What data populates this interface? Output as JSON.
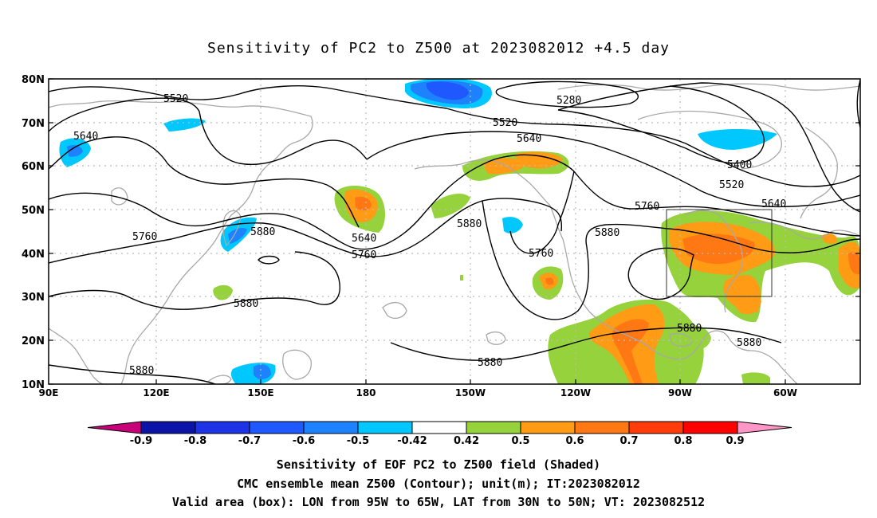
{
  "title": "Sensitivity of PC2 to Z500 at 2023082012 +4.5 day",
  "lat_labels": [
    "80N",
    "70N",
    "60N",
    "50N",
    "40N",
    "30N",
    "20N",
    "10N"
  ],
  "lon_labels": [
    "90E",
    "120E",
    "150E",
    "180",
    "150W",
    "120W",
    "90W",
    "60W"
  ],
  "contour_labels": [
    "5520",
    "5640",
    "5280",
    "5520",
    "5640",
    "5400",
    "5520",
    "5640",
    "5760",
    "5760",
    "5880",
    "5640",
    "5760",
    "5880",
    "5760",
    "5880",
    "5880",
    "5880",
    "5880",
    "5880",
    "5880"
  ],
  "colorbar": {
    "labels": [
      "-0.9",
      "-0.8",
      "-0.7",
      "-0.6",
      "-0.5",
      "-0.42",
      "0.42",
      "0.5",
      "0.6",
      "0.7",
      "0.8",
      "0.9"
    ],
    "colors": [
      "#c8007a",
      "#0a14a6",
      "#1e32e6",
      "#2058ff",
      "#1e82ff",
      "#00c8ff",
      "#ffffff",
      "#96d23c",
      "#ff9b14",
      "#ff7814",
      "#ff3c0a",
      "#ff0000",
      "#ff96c8"
    ]
  },
  "map_colors": {
    "coast": "#a8a8a8",
    "contour": "#000000",
    "grid": "#bbbbbb"
  },
  "valid_box": {
    "lon_range": "95W to 65W",
    "lat_range": "30N to 50N"
  },
  "captions": [
    "Sensitivity of EOF PC2 to Z500 field (Shaded)",
    "CMC ensemble mean Z500 (Contour); unit(m); IT:2023082012",
    "Valid area (box): LON from 95W to 65W, LAT from 30N to 50N; VT: 2023082512"
  ]
}
